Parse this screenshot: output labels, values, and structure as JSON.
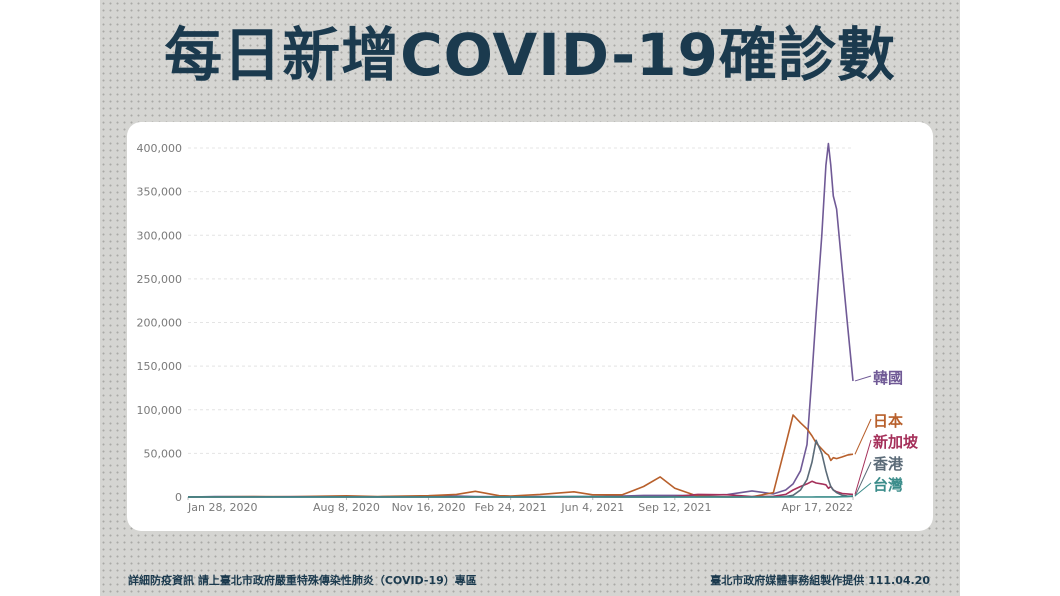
{
  "chart_data": {
    "type": "line",
    "title": "每日新增COVID-19確診數",
    "x": [
      "2020-01-28",
      "2020-03-01",
      "2020-04-15",
      "2020-06-01",
      "2020-08-08",
      "2020-09-15",
      "2020-11-16",
      "2020-12-20",
      "2021-01-12",
      "2021-02-10",
      "2021-02-24",
      "2021-04-01",
      "2021-05-12",
      "2021-06-04",
      "2021-07-10",
      "2021-08-05",
      "2021-08-25",
      "2021-09-12",
      "2021-10-10",
      "2021-11-15",
      "2021-12-15",
      "2022-01-10",
      "2022-01-25",
      "2022-02-03",
      "2022-02-12",
      "2022-02-20",
      "2022-02-26",
      "2022-03-03",
      "2022-03-10",
      "2022-03-15",
      "2022-03-18",
      "2022-03-21",
      "2022-03-24",
      "2022-03-28",
      "2022-04-04",
      "2022-04-10",
      "2022-04-17"
    ],
    "series": [
      {
        "name": "韓國",
        "color": "#705a96",
        "values": [
          0,
          500,
          300,
          50,
          400,
          200,
          300,
          1000,
          600,
          400,
          400,
          500,
          600,
          600,
          1200,
          1800,
          1800,
          1800,
          1600,
          2800,
          7000,
          3500,
          8000,
          15000,
          30000,
          60000,
          140000,
          210000,
          300000,
          380000,
          405000,
          380000,
          345000,
          330000,
          260000,
          200000,
          133000
        ]
      },
      {
        "name": "日本",
        "color": "#b8602c",
        "values": [
          0,
          200,
          500,
          300,
          1400,
          600,
          1500,
          3000,
          6500,
          1500,
          1200,
          3000,
          6000,
          2500,
          2500,
          12000,
          23000,
          10000,
          800,
          150,
          200,
          5000,
          60000,
          94000,
          85000,
          78000,
          70000,
          62000,
          55000,
          50000,
          48000,
          42000,
          45000,
          44000,
          46000,
          48000,
          49000
        ]
      },
      {
        "name": "新加坡",
        "color": "#a5305a",
        "values": [
          0,
          10,
          20,
          400,
          100,
          30,
          10,
          15,
          30,
          10,
          10,
          20,
          20,
          20,
          100,
          100,
          100,
          500,
          3000,
          2500,
          600,
          800,
          3000,
          8000,
          12000,
          15000,
          18000,
          16000,
          15000,
          14000,
          10000,
          12000,
          8000,
          6000,
          4000,
          3500,
          3000
        ]
      },
      {
        "name": "香港",
        "color": "#5b6b78",
        "values": [
          0,
          0,
          50,
          0,
          100,
          20,
          10,
          80,
          60,
          20,
          20,
          0,
          0,
          0,
          0,
          0,
          0,
          0,
          0,
          0,
          0,
          20,
          600,
          2000,
          8000,
          20000,
          40000,
          65000,
          50000,
          30000,
          20000,
          12000,
          8000,
          5000,
          2000,
          1200,
          800
        ]
      },
      {
        "name": "台灣",
        "color": "#3a8c8a",
        "values": [
          0,
          0,
          10,
          0,
          0,
          0,
          0,
          5,
          5,
          0,
          0,
          5,
          500,
          400,
          50,
          10,
          5,
          5,
          0,
          5,
          10,
          40,
          40,
          20,
          40,
          40,
          40,
          60,
          80,
          80,
          100,
          100,
          120,
          150,
          300,
          500,
          1100
        ]
      }
    ],
    "xlim": [
      "2020-01-28",
      "2022-04-17"
    ],
    "xticks": [
      {
        "value": "2020-01-28",
        "label": "Jan 28, 2020"
      },
      {
        "value": "2020-08-08",
        "label": "Aug 8, 2020"
      },
      {
        "value": "2020-11-16",
        "label": "Nov 16, 2020"
      },
      {
        "value": "2021-02-24",
        "label": "Feb 24, 2021"
      },
      {
        "value": "2021-06-04",
        "label": "Jun 4, 2021"
      },
      {
        "value": "2021-09-12",
        "label": "Sep 12, 2021"
      },
      {
        "value": "2022-04-17",
        "label": "Apr 17, 2022"
      }
    ],
    "ylim": [
      0,
      400000
    ],
    "yticks": [
      0,
      {
        "value": 50000,
        "label": "50,000"
      },
      {
        "value": 100000,
        "label": "100,000"
      },
      {
        "value": 150000,
        "label": "150,000"
      },
      {
        "value": 200000,
        "label": "200,000"
      },
      {
        "value": 250000,
        "label": "250,000"
      },
      {
        "value": 300000,
        "label": "300,000"
      },
      {
        "value": 350000,
        "label": "350,000"
      },
      {
        "value": 400000,
        "label": "400,000"
      }
    ],
    "grid": true
  },
  "footer": {
    "left": "詳細防疫資訊 請上臺北市政府嚴重特殊傳染性肺炎（COVID-19）專區",
    "right": "臺北市政府媒體事務組製作提供 111.04.20"
  }
}
